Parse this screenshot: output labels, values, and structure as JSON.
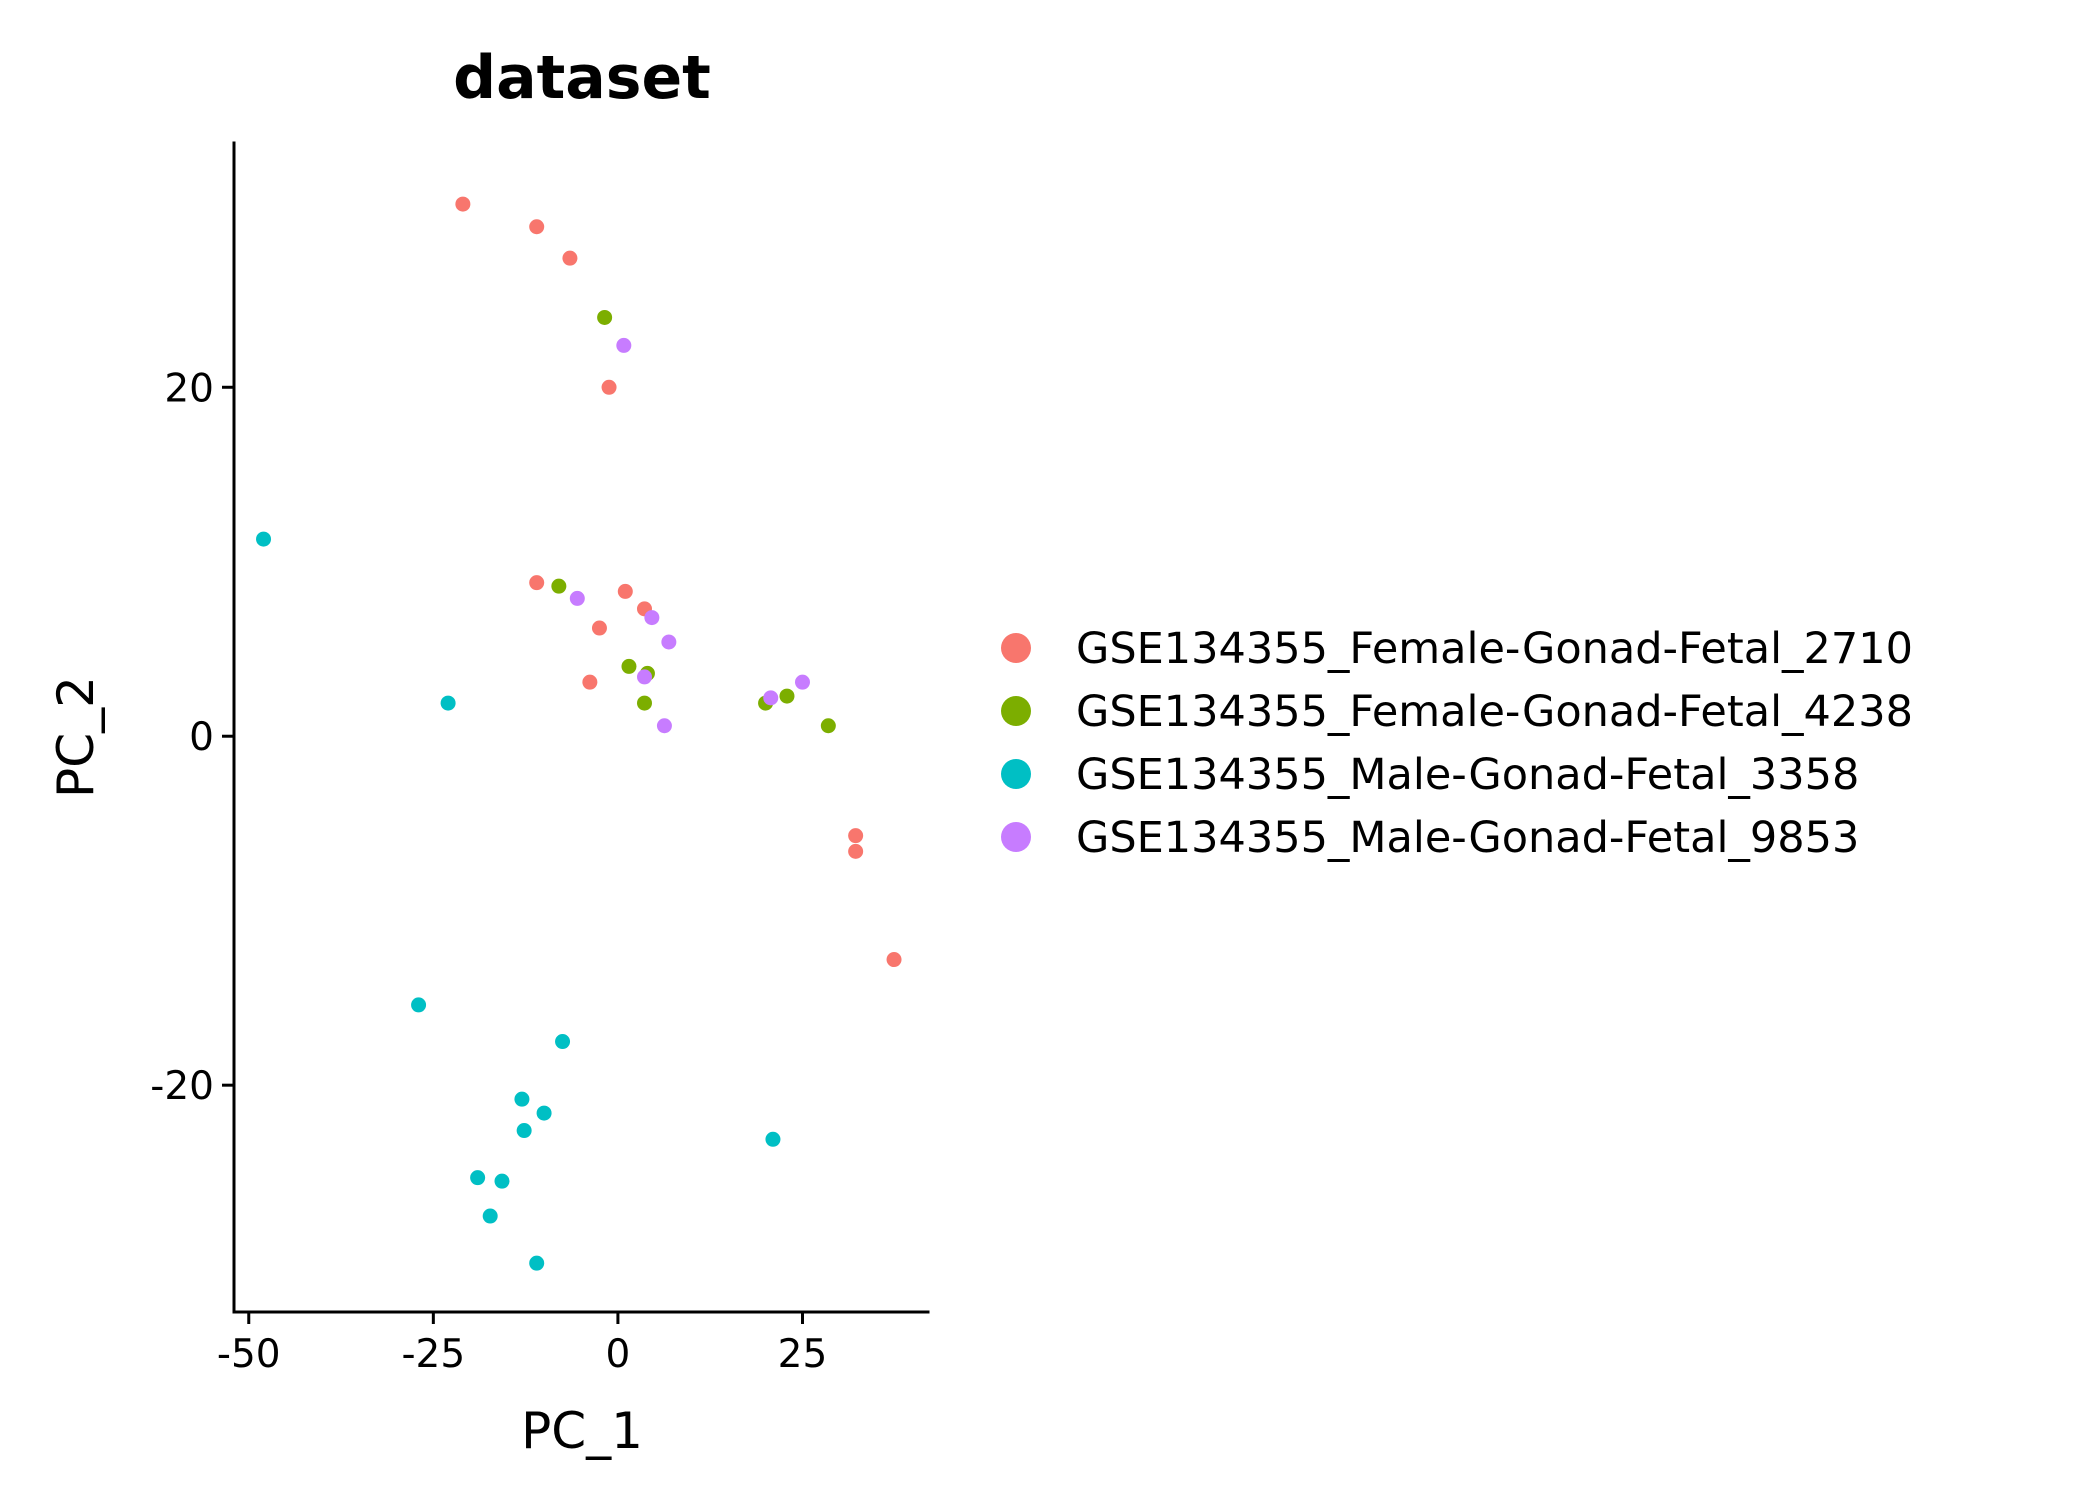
{
  "chart_data": {
    "type": "scatter",
    "title": "dataset",
    "xlabel": "PC_1",
    "ylabel": "PC_2",
    "xlim": [
      -52,
      42
    ],
    "ylim": [
      -33,
      34
    ],
    "xticks": [
      -50,
      -25,
      0,
      25
    ],
    "xtick_labels": [
      "-50",
      "-25",
      "0",
      "25"
    ],
    "yticks": [
      -20,
      0,
      20
    ],
    "ytick_labels": [
      "-20",
      "0",
      "20"
    ],
    "grid": false,
    "legend_position": "right",
    "series": [
      {
        "name": "GSE134355_Female-Gonad-Fetal_2710",
        "color": "#F8766D",
        "points": [
          [
            -21,
            30.5
          ],
          [
            -11,
            29.2
          ],
          [
            -6.5,
            27.4
          ],
          [
            -1.2,
            20.0
          ],
          [
            -11,
            8.8
          ],
          [
            1,
            8.3
          ],
          [
            3.6,
            7.3
          ],
          [
            -2.5,
            6.2
          ],
          [
            -3.8,
            3.1
          ],
          [
            32.2,
            -5.7
          ],
          [
            32.2,
            -6.6
          ],
          [
            37.4,
            -12.8
          ]
        ]
      },
      {
        "name": "GSE134355_Female-Gonad-Fetal_4238",
        "color": "#7CAE00",
        "points": [
          [
            -1.8,
            24.0
          ],
          [
            -8,
            8.6
          ],
          [
            1.5,
            4.0
          ],
          [
            4,
            3.6
          ],
          [
            3.6,
            1.9
          ],
          [
            20,
            1.9
          ],
          [
            22.9,
            2.3
          ],
          [
            28.5,
            0.6
          ]
        ]
      },
      {
        "name": "GSE134355_Male-Gonad-Fetal_3358",
        "color": "#00BFC4",
        "points": [
          [
            -48,
            11.3
          ],
          [
            -23,
            1.9
          ],
          [
            -27,
            -15.4
          ],
          [
            -7.5,
            -17.5
          ],
          [
            -13,
            -20.8
          ],
          [
            -10,
            -21.6
          ],
          [
            -12.7,
            -22.6
          ],
          [
            21,
            -23.1
          ],
          [
            -19,
            -25.3
          ],
          [
            -15.7,
            -25.5
          ],
          [
            -17.3,
            -27.5
          ],
          [
            -11,
            -30.2
          ]
        ]
      },
      {
        "name": "GSE134355_Male-Gonad-Fetal_9853",
        "color": "#C77CFF",
        "points": [
          [
            0.8,
            22.4
          ],
          [
            -5.5,
            7.9
          ],
          [
            4.6,
            6.8
          ],
          [
            6.9,
            5.4
          ],
          [
            3.6,
            3.4
          ],
          [
            20.7,
            2.2
          ],
          [
            25,
            3.1
          ],
          [
            6.3,
            0.6
          ]
        ]
      }
    ]
  }
}
